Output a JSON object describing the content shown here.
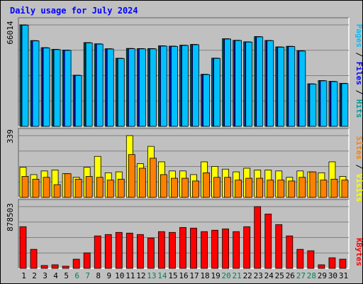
{
  "chart_data": {
    "type": "bar",
    "title": "Daily usage for July 2024",
    "categories": [
      "1",
      "2",
      "3",
      "4",
      "5",
      "6",
      "7",
      "8",
      "9",
      "10",
      "11",
      "12",
      "13",
      "14",
      "15",
      "16",
      "17",
      "18",
      "19",
      "20",
      "21",
      "22",
      "23",
      "24",
      "25",
      "26",
      "27",
      "28",
      "29",
      "30",
      "31"
    ],
    "weekend_days": [
      "6",
      "7",
      "13",
      "14",
      "20",
      "21",
      "27",
      "28"
    ],
    "panels": [
      {
        "id": "hits",
        "max_label": "66014",
        "ylim": [
          0,
          66014
        ],
        "legend": [
          "Pages",
          "Files",
          "Hits"
        ],
        "series": [
          {
            "name": "Hits",
            "color": "#009999",
            "values": [
              66014,
              55800,
              51200,
              50100,
              49600,
              33300,
              54500,
              53700,
              50500,
              44300,
              50700,
              50600,
              50600,
              52400,
              52200,
              52800,
              53300,
              33900,
              44400,
              57000,
              56000,
              55000,
              58400,
              55900,
              51700,
              52100,
              49200,
              27700,
              29800,
              29300,
              28000
            ]
          },
          {
            "name": "Files",
            "color": "#0000ff",
            "values": [
              65900,
              55700,
              51100,
              50000,
              49500,
              33200,
              54400,
              53600,
              50400,
              44200,
              50600,
              50500,
              50500,
              52300,
              52100,
              52700,
              53200,
              33800,
              44300,
              56900,
              55900,
              54900,
              58300,
              55800,
              51600,
              52000,
              49100,
              27600,
              29700,
              29200,
              27900
            ]
          },
          {
            "name": "Pages",
            "color": "#00c0ff",
            "values": [
              65800,
              55600,
              51000,
              49900,
              49400,
              33100,
              54300,
              53500,
              50300,
              44100,
              50500,
              50400,
              50400,
              52200,
              52000,
              52600,
              53100,
              33700,
              44200,
              56800,
              55800,
              54800,
              58200,
              55700,
              51500,
              51900,
              49000,
              27500,
              29600,
              29100,
              27800
            ]
          }
        ]
      },
      {
        "id": "visits",
        "max_label": "339",
        "ylim": [
          0,
          339
        ],
        "legend": [
          "Sites",
          "Visits"
        ],
        "series": [
          {
            "name": "Visits",
            "color": "#ffff00",
            "values": [
              165,
              125,
              145,
              150,
              130,
              110,
              165,
              225,
              135,
              140,
              339,
              185,
              280,
              195,
              145,
              145,
              125,
              195,
              170,
              155,
              140,
              160,
              150,
              150,
              145,
              110,
              145,
              140,
              135,
              195,
              115
            ]
          },
          {
            "name": "Sites",
            "color": "#ff8000",
            "values": [
              115,
              100,
              110,
              70,
              130,
              100,
              115,
              110,
              95,
              100,
              235,
              160,
              215,
              125,
              105,
              105,
              90,
              135,
              110,
              110,
              95,
              105,
              105,
              95,
              95,
              90,
              110,
              140,
              95,
              100,
              95
            ]
          }
        ]
      },
      {
        "id": "kbytes",
        "max_label": "878503",
        "ylim": [
          0,
          878503
        ],
        "legend": [
          "KBytes"
        ],
        "series": [
          {
            "name": "KBytes",
            "color": "#ff0000",
            "values": [
              593000,
              271000,
              41000,
              51000,
              31000,
              131000,
              221000,
              462000,
              482000,
              512000,
              502000,
              482000,
              432000,
              523000,
              512000,
              582000,
              573000,
              523000,
              543000,
              562000,
              523000,
              593000,
              878503,
              773000,
              623000,
              462000,
              271000,
              251000,
              51000,
              151000,
              131000
            ]
          }
        ]
      }
    ]
  }
}
